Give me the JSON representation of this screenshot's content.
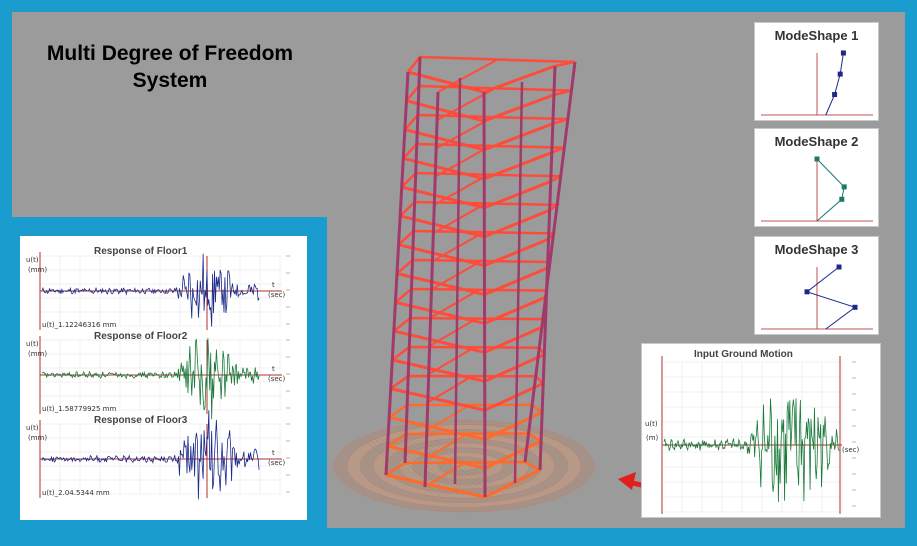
{
  "title": {
    "line1": "Multi Degree of Freedom",
    "line2": "System"
  },
  "mode_shapes": [
    {
      "title": "ModeShape 1",
      "points": [
        [
          0.22,
          0
        ],
        [
          0.44,
          0.33
        ],
        [
          0.58,
          0.66
        ],
        [
          0.66,
          1
        ]
      ]
    },
    {
      "title": "ModeShape 2",
      "points": [
        [
          0.0,
          0
        ],
        [
          0.62,
          0.35
        ],
        [
          0.68,
          0.55
        ],
        [
          0.0,
          1
        ]
      ]
    },
    {
      "title": "ModeShape 3",
      "points": [
        [
          0.22,
          0
        ],
        [
          0.95,
          0.35
        ],
        [
          -0.25,
          0.6
        ],
        [
          0.55,
          1
        ]
      ]
    }
  ],
  "responses": [
    {
      "title": "Response of Floor1",
      "ylabel": "u(t)",
      "yunit": "(mm)",
      "xlabel": "t",
      "xunit": "(sec)",
      "peak": "u(t)_1.12246316 mm",
      "color": "#1b2a8a"
    },
    {
      "title": "Response of Floor2",
      "ylabel": "u(t)",
      "yunit": "(mm)",
      "xlabel": "t",
      "xunit": "(sec)",
      "peak": "u(t)_1.58779925 mm",
      "color": "#1a7a3a"
    },
    {
      "title": "Response of Floor3",
      "ylabel": "u(t)",
      "yunit": "(mm)",
      "xlabel": "t",
      "xunit": "(sec)",
      "peak": "u(t)_2.04.5344 mm",
      "color": "#1b2a8a"
    }
  ],
  "ground_motion": {
    "title": "Input Ground Motion",
    "ylabel": "u(t)",
    "yunit": "(m)",
    "xunit": "(sec)",
    "color": "#1a7a3a"
  },
  "colors": {
    "frame_blue": "#1a9ccf",
    "background": "#9b9b9b",
    "beam": "#ff4b3a",
    "column": "#a03a6a",
    "arrow": "#e0201c"
  },
  "building": {
    "stories": 14
  }
}
